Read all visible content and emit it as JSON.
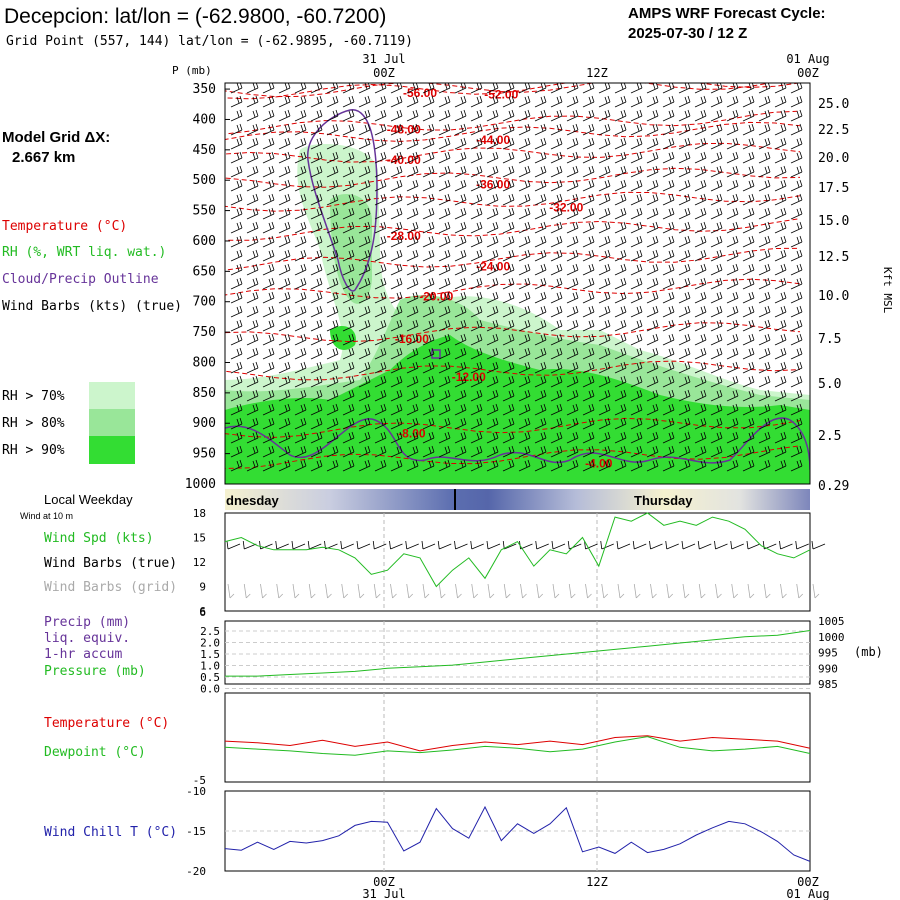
{
  "header": {
    "title": "Decepcion:  lat/lon = (-62.9800, -60.7200)",
    "grid_point": "Grid Point (557, 144) lat/lon = (-62.9895, -60.7119)",
    "cycle_label": "AMPS WRF Forecast Cycle:",
    "cycle_value": "2025-07-30 / 12  Z"
  },
  "left_panel": {
    "model_grid_label": "Model Grid ΔX:",
    "model_grid_value": "2.667 km",
    "legend_temperature": "Temperature (°C)",
    "legend_rh": "RH (%, WRT liq. wat.)",
    "legend_cloud": "Cloud/Precip Outline",
    "legend_wind": "Wind Barbs (kts) (true)",
    "rh_levels": [
      {
        "label": "RH > 70%",
        "color": "#ccf5cc"
      },
      {
        "label": "RH > 80%",
        "color": "#99e699"
      },
      {
        "label": "RH > 90%",
        "color": "#33dd33"
      }
    ],
    "local_weekday": "Local Weekday",
    "wind_at_10m": "Wind at 10 m",
    "wind_spd_label": "Wind Spd (kts)",
    "wind_barbs_true": "Wind Barbs (true)",
    "wind_barbs_grid": "Wind Barbs (grid)",
    "precip_label_1": "Precip (mm)",
    "precip_label_2": "liq. equiv.",
    "precip_label_3": "1-hr accum",
    "pressure_label": "Pressure (mb)",
    "temp_label": "Temperature (°C)",
    "dewpoint_label": "Dewpoint (°C)",
    "windchill_label": "Wind Chill T (°C)"
  },
  "time_axis": {
    "top_dates": [
      "31 Jul",
      "01 Aug"
    ],
    "ticks": [
      "00Z",
      "12Z",
      "00Z"
    ],
    "bottom_dates": [
      "31 Jul",
      "01 Aug"
    ],
    "weekdays": [
      "dnesday",
      "Thursday"
    ]
  },
  "colors": {
    "temperature": "#dd0000",
    "rh": "#22bb22",
    "cloud": "#663399",
    "wind": "#000000",
    "grid_wind": "#aaaaaa",
    "wind_chill": "#2222aa",
    "pressure": "#22bb22"
  },
  "chart_data": [
    {
      "type": "heatmap",
      "name": "cross-section",
      "y_axis_label": "P (mb)",
      "pressure_levels": [
        "350",
        "400",
        "450",
        "500",
        "550",
        "600",
        "650",
        "700",
        "750",
        "800",
        "850",
        "900",
        "950",
        "1000"
      ],
      "height_label": "Kft MSL",
      "height_ticks": [
        "25.0",
        "22.5",
        "20.0",
        "17.5",
        "15.0",
        "12.5",
        "10.0",
        "7.5",
        "5.0",
        "2.5",
        "0.29"
      ],
      "x_range_hours": [
        0,
        36
      ],
      "temperature_contours": [
        {
          "label": "-56.00",
          "t": 12.0,
          "p": 355
        },
        {
          "label": "-52.00",
          "t": 17.0,
          "p": 357
        },
        {
          "label": "-48.00",
          "t": 11.0,
          "p": 415
        },
        {
          "label": "-44.00",
          "t": 16.5,
          "p": 432
        },
        {
          "label": "-40.00",
          "t": 11.0,
          "p": 465
        },
        {
          "label": "-36.00",
          "t": 16.5,
          "p": 505
        },
        {
          "label": "-32.00",
          "t": 21.0,
          "p": 543
        },
        {
          "label": "-28.00",
          "t": 11.0,
          "p": 590
        },
        {
          "label": "-24.00",
          "t": 16.5,
          "p": 640
        },
        {
          "label": "-20.00",
          "t": 13.0,
          "p": 690
        },
        {
          "label": "-16.00",
          "t": 11.5,
          "p": 760
        },
        {
          "label": "-12.00",
          "t": 15.0,
          "p": 822
        },
        {
          "label": "-8.00",
          "t": 11.5,
          "p": 915
        },
        {
          "label": "-4.00",
          "t": 23.0,
          "p": 965
        }
      ]
    },
    {
      "type": "line",
      "name": "wind-speed",
      "ylabel": "Wind Spd (kts)",
      "yticks": [
        "18",
        "15",
        "12",
        "9",
        "6"
      ],
      "ylim": [
        6,
        18
      ],
      "x": [
        0,
        1,
        2,
        3,
        4,
        5,
        6,
        7,
        8,
        9,
        10,
        11,
        12,
        13,
        14,
        15,
        16,
        17,
        18,
        19,
        20,
        21,
        22,
        23,
        24,
        25,
        26,
        27,
        28,
        29,
        30,
        31,
        32,
        33,
        34,
        35,
        36
      ],
      "values": [
        14.5,
        15.0,
        14.0,
        13.5,
        13.5,
        13.5,
        13.8,
        13.5,
        12.5,
        10.5,
        11.0,
        13.0,
        12.5,
        9.0,
        11.0,
        12.5,
        10.0,
        13.5,
        14.5,
        11.5,
        13.5,
        13.0,
        15.0,
        11.5,
        17.5,
        17.0,
        18.0,
        16.5,
        17.0,
        16.5,
        17.5,
        17.0,
        16.0,
        14.0,
        13.0,
        12.5,
        13.5
      ]
    },
    {
      "type": "line",
      "name": "pressure",
      "ylabel": "Pressure (mb)",
      "precip_ticks": [
        "2.5",
        "2.0",
        "1.5",
        "1.0",
        "0.5",
        "0.0"
      ],
      "pressure_ticks": [
        "1005",
        "1000",
        "995",
        "990",
        "985"
      ],
      "pressure_unit": "(mb)",
      "ylim": [
        985,
        1005
      ],
      "x": [
        0,
        2,
        4,
        6,
        8,
        10,
        12,
        14,
        16,
        18,
        20,
        22,
        24,
        26,
        28,
        30,
        32,
        34,
        36
      ],
      "values": [
        987.5,
        987.5,
        988.0,
        988.5,
        989.0,
        990.0,
        990.5,
        991.0,
        992.0,
        993.0,
        994.0,
        995.0,
        996.0,
        997.0,
        998.0,
        999.0,
        1000.0,
        1000.5,
        1002.0
      ]
    },
    {
      "type": "line",
      "name": "temperature-dewpoint",
      "yticks": [
        "-5"
      ],
      "ylim": [
        -8,
        2
      ],
      "x": [
        0,
        2,
        4,
        6,
        8,
        10,
        12,
        14,
        16,
        18,
        20,
        22,
        24,
        26,
        28,
        30,
        32,
        34,
        36
      ],
      "series": [
        {
          "name": "Temperature (°C)",
          "values": [
            -3.4,
            -3.6,
            -3.9,
            -3.3,
            -4.0,
            -3.5,
            -4.5,
            -3.9,
            -3.5,
            -3.8,
            -3.4,
            -3.8,
            -3.0,
            -2.8,
            -3.4,
            -3.0,
            -3.2,
            -3.4,
            -4.2
          ]
        },
        {
          "name": "Dewpoint (°C)",
          "values": [
            -4.1,
            -4.3,
            -4.5,
            -4.8,
            -5.0,
            -4.5,
            -4.7,
            -4.4,
            -4.0,
            -4.2,
            -4.6,
            -4.3,
            -3.5,
            -2.9,
            -4.1,
            -4.5,
            -4.3,
            -4.0,
            -4.8
          ]
        }
      ]
    },
    {
      "type": "line",
      "name": "wind-chill",
      "ylabel": "Wind Chill T (°C)",
      "yticks": [
        "-10",
        "-15",
        "-20"
      ],
      "ylim": [
        -20,
        -10
      ],
      "x": [
        0,
        1,
        2,
        3,
        4,
        5,
        6,
        7,
        8,
        9,
        10,
        11,
        12,
        13,
        14,
        15,
        16,
        17,
        18,
        19,
        20,
        21,
        22,
        23,
        24,
        25,
        26,
        27,
        28,
        29,
        30,
        31,
        32,
        33,
        34,
        35,
        36
      ],
      "values": [
        -17.2,
        -17.4,
        -16.4,
        -17.3,
        -16.3,
        -16.5,
        -16.2,
        -15.6,
        -14.3,
        -13.8,
        -13.9,
        -17.5,
        -16.4,
        -12.2,
        -14.7,
        -15.9,
        -12.0,
        -16.2,
        -14.1,
        -15.3,
        -14.1,
        -12.1,
        -17.6,
        -17.0,
        -17.8,
        -16.4,
        -17.7,
        -17.3,
        -16.6,
        -15.5,
        -14.6,
        -13.8,
        -14.1,
        -15.1,
        -16.3,
        -18.0,
        -18.8
      ]
    }
  ]
}
